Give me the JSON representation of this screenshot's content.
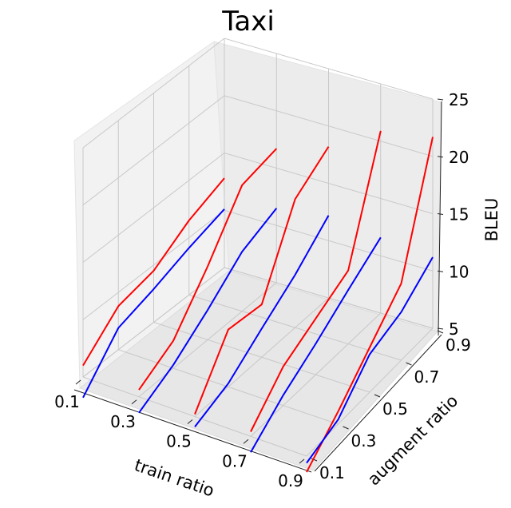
{
  "chart_data": {
    "type": "line3d",
    "title": "Taxi",
    "xlabel": "train ratio",
    "ylabel": "augment ratio",
    "zlabel": "BLEU",
    "x_ticks": [
      "0.1",
      "0.3",
      "0.5",
      "0.7",
      "0.9"
    ],
    "y_ticks": [
      "0.1",
      "0.3",
      "0.5",
      "0.7",
      "0.9"
    ],
    "z_ticks": [
      "5",
      "10",
      "15",
      "20",
      "25"
    ],
    "xlim": [
      0.1,
      0.9
    ],
    "ylim": [
      0.1,
      0.9
    ],
    "zlim": [
      5,
      25
    ],
    "grid": true,
    "series": [
      {
        "color": "#ff0000",
        "x": 0.1,
        "points": [
          [
            0.1,
            6.0
          ],
          [
            0.3,
            8.8
          ],
          [
            0.5,
            9.5
          ],
          [
            0.7,
            11.5
          ],
          [
            0.9,
            12.8
          ]
        ]
      },
      {
        "color": "#0000ff",
        "x": 0.1,
        "points": [
          [
            0.1,
            3.2
          ],
          [
            0.3,
            6.9
          ],
          [
            0.5,
            7.9
          ],
          [
            0.7,
            9.1
          ],
          [
            0.9,
            10.1
          ]
        ]
      },
      {
        "color": "#ff0000",
        "x": 0.3,
        "points": [
          [
            0.1,
            5.6
          ],
          [
            0.3,
            7.4
          ],
          [
            0.5,
            11.4
          ],
          [
            0.7,
            16.0
          ],
          [
            0.9,
            16.7
          ]
        ]
      },
      {
        "color": "#0000ff",
        "x": 0.3,
        "points": [
          [
            0.1,
            3.6
          ],
          [
            0.3,
            5.3
          ],
          [
            0.5,
            7.6
          ],
          [
            0.7,
            10.2
          ],
          [
            0.9,
            11.5
          ]
        ]
      },
      {
        "color": "#ff0000",
        "x": 0.5,
        "points": [
          [
            0.1,
            5.2
          ],
          [
            0.3,
            10.0
          ],
          [
            0.5,
            9.6
          ],
          [
            0.7,
            16.2
          ],
          [
            0.9,
            18.2
          ]
        ]
      },
      {
        "color": "#0000ff",
        "x": 0.5,
        "points": [
          [
            0.1,
            4.1
          ],
          [
            0.3,
            5.3
          ],
          [
            0.5,
            7.5
          ],
          [
            0.7,
            9.6
          ],
          [
            0.9,
            12.2
          ]
        ]
      },
      {
        "color": "#ff0000",
        "x": 0.7,
        "points": [
          [
            0.1,
            5.4
          ],
          [
            0.3,
            8.4
          ],
          [
            0.5,
            9.9
          ],
          [
            0.7,
            11.4
          ],
          [
            0.9,
            20.9
          ]
        ]
      },
      {
        "color": "#0000ff",
        "x": 0.7,
        "points": [
          [
            0.1,
            3.6
          ],
          [
            0.3,
            5.9
          ],
          [
            0.5,
            7.7
          ],
          [
            0.7,
            9.7
          ],
          [
            0.9,
            11.6
          ]
        ]
      },
      {
        "color": "#ff0000",
        "x": 0.9,
        "points": [
          [
            0.1,
            3.6
          ],
          [
            0.3,
            6.1
          ],
          [
            0.5,
            8.9
          ],
          [
            0.7,
            11.7
          ],
          [
            0.9,
            21.7
          ]
        ]
      },
      {
        "color": "#0000ff",
        "x": 0.9,
        "points": [
          [
            0.1,
            4.4
          ],
          [
            0.3,
            5.4
          ],
          [
            0.5,
            8.3
          ],
          [
            0.7,
            9.2
          ],
          [
            0.9,
            11.2
          ]
        ]
      }
    ]
  }
}
